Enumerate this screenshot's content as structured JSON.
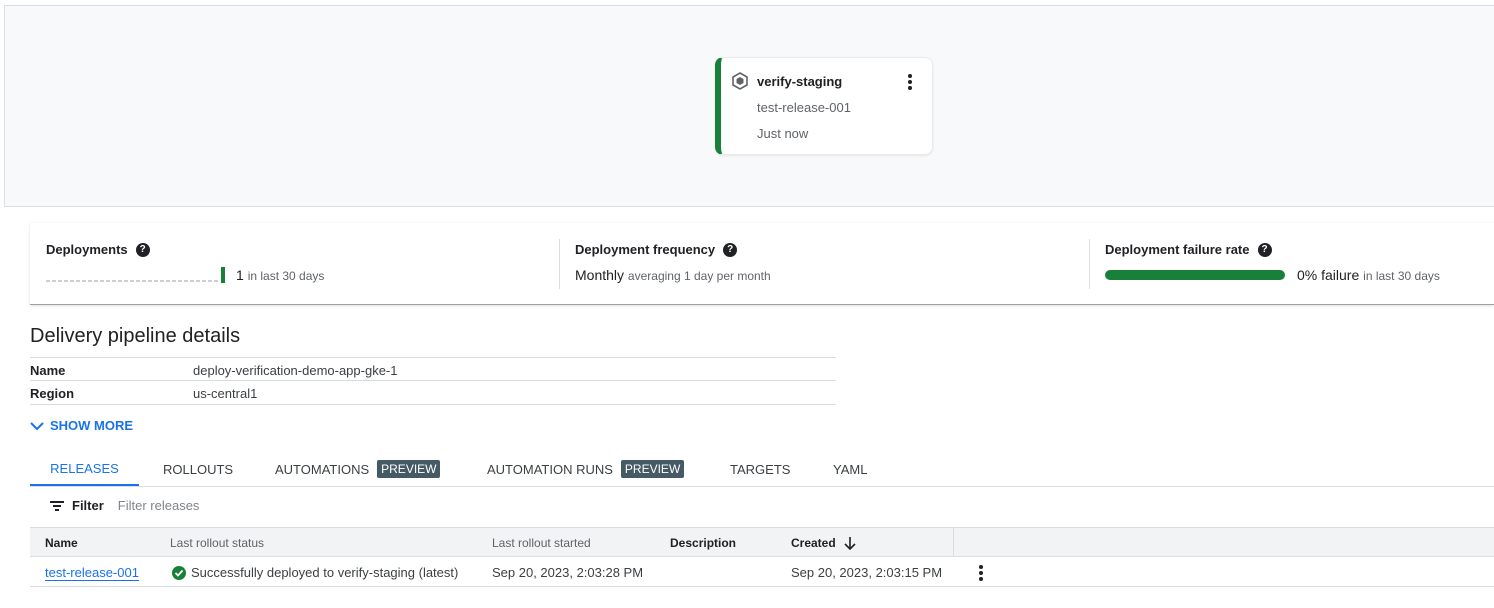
{
  "pipeline_node": {
    "name": "verify-staging",
    "release": "test-release-001",
    "time": "Just now",
    "icon": "cube-hexagon-icon",
    "status_color": "#188038"
  },
  "metrics": [
    {
      "title": "Deployments",
      "value": "1",
      "detail": "in last 30 days"
    },
    {
      "title": "Deployment frequency",
      "value": "Monthly",
      "detail": "averaging 1 day per month"
    },
    {
      "title": "Deployment failure rate",
      "value": "0% failure",
      "detail": "in last 30 days",
      "success_fraction": 1.0
    }
  ],
  "details": {
    "title": "Delivery pipeline details",
    "rows": [
      {
        "key": "Name",
        "value": "deploy-verification-demo-app-gke-1"
      },
      {
        "key": "Region",
        "value": "us-central1"
      }
    ],
    "show_more": "SHOW MORE"
  },
  "tabs": [
    {
      "label": "RELEASES",
      "active": true
    },
    {
      "label": "ROLLOUTS"
    },
    {
      "label": "AUTOMATIONS",
      "badge": "PREVIEW"
    },
    {
      "label": "AUTOMATION RUNS",
      "badge": "PREVIEW"
    },
    {
      "label": "TARGETS"
    },
    {
      "label": "YAML"
    }
  ],
  "filter": {
    "label": "Filter",
    "placeholder": "Filter releases"
  },
  "table": {
    "headers": [
      "Name",
      "Last rollout status",
      "Last rollout started",
      "Description",
      "Created"
    ],
    "rows": [
      {
        "name": "test-release-001",
        "status": "Successfully deployed to verify-staging (latest)",
        "started": "Sep 20, 2023, 2:03:28 PM",
        "description": "",
        "created": "Sep 20, 2023, 2:03:15 PM"
      }
    ]
  },
  "colors": {
    "accent": "#1a73e8",
    "success": "#188038",
    "badge": "#455a64"
  }
}
